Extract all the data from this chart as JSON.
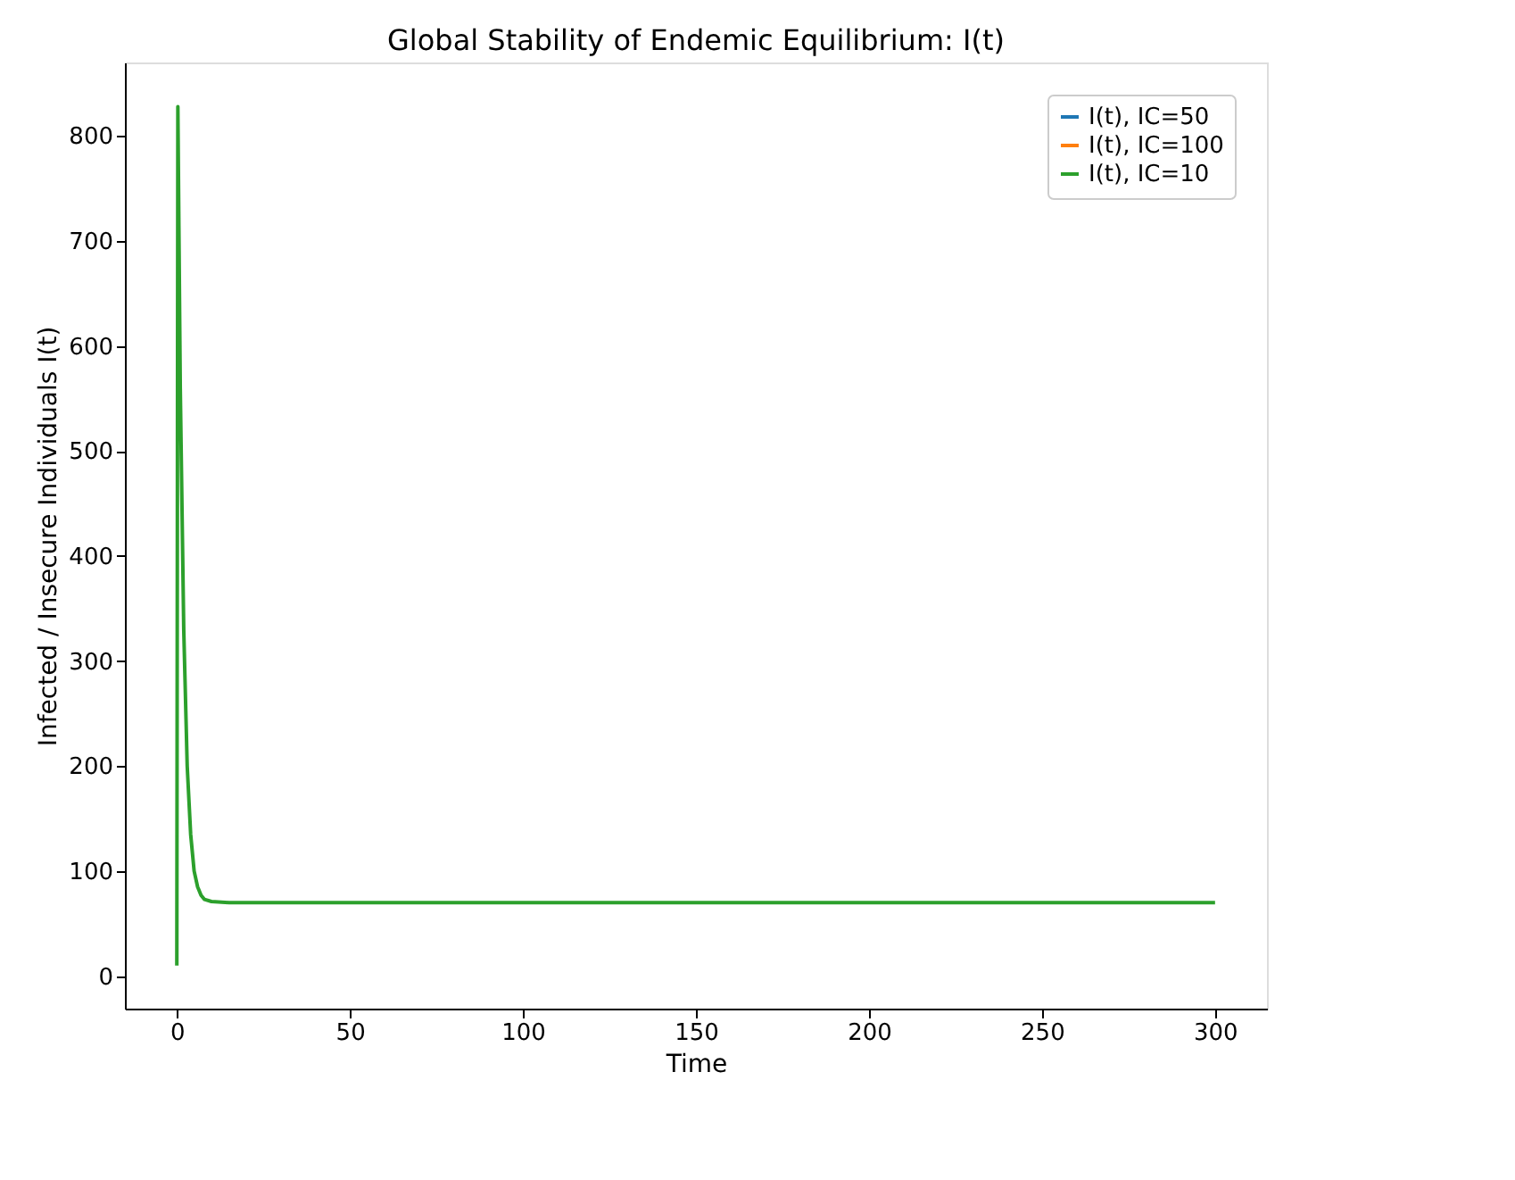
{
  "chart_data": {
    "type": "line",
    "title": "Global Stability of Endemic Equilibrium: I(t)",
    "xlabel": "Time",
    "ylabel": "Infected / Insecure Individuals I(t)",
    "x": [
      0,
      0.3,
      1,
      2,
      3,
      4,
      5,
      6,
      7,
      8,
      10,
      15,
      300
    ],
    "series": [
      {
        "name": "I(t), IC=50",
        "color": "#1f77b4",
        "values": [
          null,
          null,
          null,
          null,
          null,
          null,
          null,
          null,
          null,
          null,
          null,
          null,
          null
        ]
      },
      {
        "name": "I(t), IC=100",
        "color": "#ff7f0e",
        "values": [
          null,
          null,
          null,
          null,
          null,
          null,
          null,
          null,
          null,
          null,
          null,
          null,
          null
        ]
      },
      {
        "name": "I(t), IC=10",
        "color": "#2ca02c",
        "values": [
          10,
          828,
          560,
          330,
          200,
          135,
          100,
          85,
          77,
          73,
          71,
          70,
          70
        ]
      }
    ],
    "xlim": [
      -15,
      315
    ],
    "xticks": [
      0,
      50,
      100,
      150,
      200,
      250,
      300
    ],
    "ylim": [
      -31,
      870
    ],
    "yticks": [
      0,
      100,
      200,
      300,
      400,
      500,
      600,
      700,
      800
    ],
    "grid": false,
    "legend": "top right",
    "line_style": "solid",
    "marker": "none"
  }
}
